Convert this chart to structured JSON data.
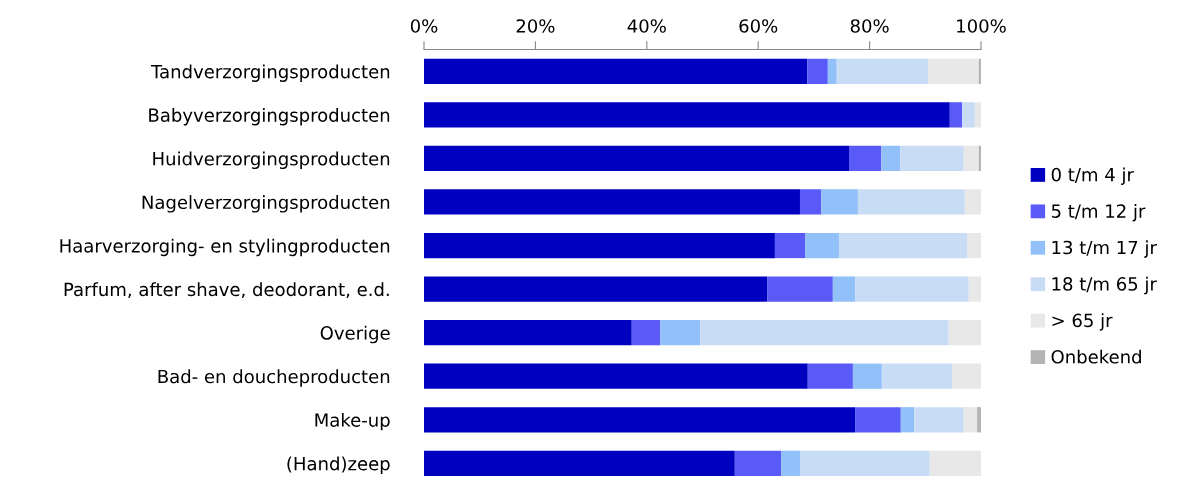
{
  "chart_data": {
    "type": "bar",
    "orientation": "horizontal",
    "stacked": true,
    "legend": "right",
    "grid": false,
    "categories": [
      "Tandverzorgingsproducten",
      "Babyverzorgingsproducten",
      "Huidverzorgingsproducten",
      "Nagelverzorgingsproducten",
      "Haarverzorging- en stylingproducten",
      "Parfum, after shave, deodorant, e.d.",
      "Overige",
      "Bad- en doucheproducten",
      "Make-up",
      "(Hand)zeep"
    ],
    "xlim": [
      0,
      100
    ],
    "xticks": [
      {
        "value": 0,
        "label": "0%"
      },
      {
        "value": 20,
        "label": "20%"
      },
      {
        "value": 40,
        "label": "40%"
      },
      {
        "value": 60,
        "label": "60%"
      },
      {
        "value": 80,
        "label": "80%"
      },
      {
        "value": 100,
        "label": "100%"
      }
    ],
    "series": [
      {
        "name": "0 t/m 4 jr",
        "color": "#0000c0",
        "values": [
          68.8,
          94.4,
          76.3,
          67.5,
          63.0,
          61.6,
          37.3,
          68.9,
          77.4,
          55.8
        ]
      },
      {
        "name": "5 t/m 12 jr",
        "color": "#5a5af8",
        "values": [
          3.7,
          2.2,
          5.8,
          3.8,
          5.4,
          11.8,
          5.1,
          8.1,
          8.2,
          8.3
        ]
      },
      {
        "name": "13 t/m 17 jr",
        "color": "#92c0f8",
        "values": [
          1.6,
          0,
          3.4,
          6.6,
          6.1,
          4.0,
          7.2,
          5.2,
          2.4,
          3.4
        ]
      },
      {
        "name": "18 t/m 65 jr",
        "color": "#c8dcf5",
        "values": [
          16.4,
          2.3,
          11.4,
          19.2,
          23.0,
          20.4,
          44.6,
          12.6,
          8.9,
          23.3
        ]
      },
      {
        "name": "> 65 jr",
        "color": "#e8e8e8",
        "values": [
          9.1,
          1.1,
          2.7,
          2.9,
          2.5,
          2.2,
          5.8,
          5.2,
          2.4,
          9.2
        ]
      },
      {
        "name": "Onbekend",
        "color": "#b4b4b4",
        "values": [
          0.4,
          0,
          0.4,
          0,
          0,
          0,
          0,
          0,
          0.7,
          0
        ]
      }
    ]
  }
}
